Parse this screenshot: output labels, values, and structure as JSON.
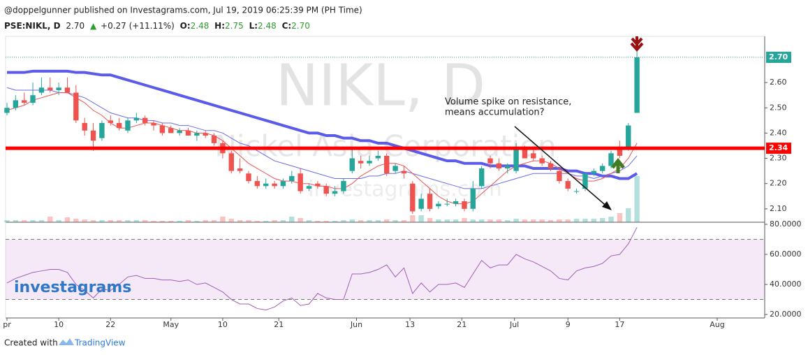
{
  "header": {
    "publisher": "@doppelgunner published on Investagrams.com, Jul 19, 2019 06:25:39 PM (PH Time)",
    "symbol": "PSE:NIKL, D",
    "last": "2.70",
    "change_arrow": "▲",
    "change": "+0.27 (+11.11%)",
    "ohlc": [
      {
        "label": "O:",
        "value": "2.48"
      },
      {
        "label": "H:",
        "value": "2.75"
      },
      {
        "label": "L:",
        "value": "2.48"
      },
      {
        "label": "C:",
        "value": "2.70"
      }
    ]
  },
  "watermark": {
    "ticker": "NIKL, D",
    "company": "Nickel Asia Corporation",
    "site": "investagrams.com",
    "logo": "investagrams"
  },
  "footer": {
    "text": "Created with",
    "brand": "TradingView"
  },
  "chart_data": [
    {
      "type": "candlestick",
      "up_color": "#26a69a",
      "down_color": "#ef5350",
      "xlim": [
        -0.16,
        87.8
      ],
      "ylim": [
        2.047,
        2.783
      ],
      "yticks": [
        {
          "value": 2.1,
          "label": "2.10"
        },
        {
          "value": 2.2,
          "label": "2.20"
        },
        {
          "value": 2.3,
          "label": "2.30"
        },
        {
          "value": 2.4,
          "label": "2.40"
        },
        {
          "value": 2.5,
          "label": "2.50"
        },
        {
          "value": 2.6,
          "label": "2.60"
        }
      ],
      "price_lines": [
        {
          "value": 2.7,
          "label": "2.70",
          "color": "#26a69a"
        },
        {
          "value": 2.34,
          "label": "2.34",
          "color": "#ff0000"
        }
      ],
      "open": [
        2.48,
        2.5,
        2.53,
        2.52,
        2.56,
        2.58,
        2.57,
        2.58,
        2.56,
        2.44,
        2.41,
        2.38,
        2.45,
        2.44,
        2.41,
        2.45,
        2.46,
        2.44,
        2.43,
        2.42,
        2.4,
        2.41,
        2.39,
        2.4,
        2.39,
        2.36,
        2.32,
        2.26,
        2.24,
        2.21,
        2.19,
        2.2,
        2.19,
        2.21,
        2.24,
        2.18,
        2.2,
        2.19,
        2.16,
        2.17,
        2.25,
        2.29,
        2.28,
        2.3,
        2.31,
        2.25,
        2.25,
        2.2,
        2.1,
        2.16,
        2.11,
        2.12,
        2.12,
        2.13,
        2.1,
        2.19,
        2.3,
        2.28,
        2.26,
        2.25,
        2.34,
        2.32,
        2.3,
        2.28,
        2.25,
        2.21,
        2.17,
        2.18,
        2.24,
        2.25,
        2.27,
        2.34,
        2.34,
        2.48
      ],
      "high": [
        2.52,
        2.55,
        2.56,
        2.6,
        2.62,
        2.62,
        2.6,
        2.62,
        2.59,
        2.46,
        2.44,
        2.45,
        2.47,
        2.46,
        2.46,
        2.48,
        2.47,
        2.45,
        2.44,
        2.43,
        2.42,
        2.42,
        2.41,
        2.41,
        2.4,
        2.37,
        2.33,
        2.3,
        2.25,
        2.23,
        2.22,
        2.21,
        2.22,
        2.25,
        2.26,
        2.2,
        2.21,
        2.2,
        2.19,
        2.22,
        2.34,
        2.31,
        2.31,
        2.33,
        2.32,
        2.28,
        2.27,
        2.21,
        2.16,
        2.18,
        2.13,
        2.14,
        2.14,
        2.14,
        2.21,
        2.27,
        2.31,
        2.3,
        2.28,
        2.36,
        2.35,
        2.34,
        2.31,
        2.29,
        2.26,
        2.22,
        2.18,
        2.24,
        2.26,
        2.28,
        2.33,
        2.37,
        2.44,
        2.75
      ],
      "low": [
        2.47,
        2.49,
        2.51,
        2.51,
        2.55,
        2.56,
        2.55,
        2.56,
        2.44,
        2.39,
        2.33,
        2.37,
        2.43,
        2.41,
        2.4,
        2.44,
        2.43,
        2.41,
        2.39,
        2.4,
        2.39,
        2.39,
        2.37,
        2.38,
        2.35,
        2.3,
        2.24,
        2.24,
        2.2,
        2.18,
        2.18,
        2.18,
        2.18,
        2.2,
        2.16,
        2.17,
        2.18,
        2.15,
        2.15,
        2.16,
        2.24,
        2.26,
        2.27,
        2.29,
        2.23,
        2.24,
        2.22,
        2.08,
        2.09,
        2.09,
        2.1,
        2.11,
        2.11,
        2.09,
        2.09,
        2.18,
        2.26,
        2.25,
        2.24,
        2.24,
        2.3,
        2.29,
        2.27,
        2.25,
        2.2,
        2.17,
        2.16,
        2.17,
        2.23,
        2.24,
        2.26,
        2.3,
        2.33,
        2.48
      ],
      "close": [
        2.5,
        2.53,
        2.52,
        2.55,
        2.58,
        2.57,
        2.58,
        2.56,
        2.45,
        2.41,
        2.37,
        2.44,
        2.44,
        2.42,
        2.45,
        2.46,
        2.44,
        2.43,
        2.4,
        2.4,
        2.41,
        2.39,
        2.4,
        2.39,
        2.36,
        2.32,
        2.25,
        2.25,
        2.21,
        2.19,
        2.2,
        2.19,
        2.21,
        2.23,
        2.17,
        2.19,
        2.19,
        2.16,
        2.17,
        2.21,
        2.3,
        2.28,
        2.29,
        2.31,
        2.24,
        2.27,
        2.24,
        2.09,
        2.14,
        2.1,
        2.12,
        2.12,
        2.13,
        2.1,
        2.18,
        2.26,
        2.28,
        2.26,
        2.27,
        2.34,
        2.3,
        2.3,
        2.28,
        2.26,
        2.21,
        2.18,
        2.17,
        2.24,
        2.25,
        2.27,
        2.32,
        2.31,
        2.43,
        2.7
      ],
      "volume": [
        3,
        3,
        3,
        3,
        3,
        8,
        3,
        7,
        5,
        4,
        3,
        3,
        3,
        3,
        3,
        3,
        3,
        2,
        2,
        2,
        2,
        3,
        2,
        3,
        3,
        8,
        5,
        3,
        3,
        2,
        2,
        3,
        3,
        8,
        6,
        3,
        2,
        2,
        2,
        3,
        4,
        3,
        3,
        3,
        4,
        3,
        3,
        10,
        10,
        6,
        4,
        4,
        4,
        6,
        4,
        4,
        4,
        4,
        3,
        5,
        4,
        4,
        4,
        3,
        4,
        4,
        5,
        5,
        5,
        6,
        8,
        13,
        20,
        66
      ],
      "series": [
        {
          "color": "#5b5bea",
          "width": 4,
          "values": [
            2.64,
            2.64,
            2.64,
            2.645,
            2.645,
            2.645,
            2.645,
            2.645,
            2.64,
            2.64,
            2.635,
            2.63,
            2.63,
            2.62,
            2.61,
            2.6,
            2.59,
            2.58,
            2.57,
            2.56,
            2.55,
            2.54,
            2.53,
            2.52,
            2.51,
            2.5,
            2.49,
            2.48,
            2.47,
            2.46,
            2.45,
            2.44,
            2.43,
            2.42,
            2.41,
            2.4,
            2.4,
            2.39,
            2.39,
            2.38,
            2.38,
            2.37,
            2.37,
            2.36,
            2.36,
            2.35,
            2.34,
            2.33,
            2.32,
            2.31,
            2.3,
            2.29,
            2.29,
            2.28,
            2.28,
            2.28,
            2.27,
            2.27,
            2.27,
            2.27,
            2.27,
            2.26,
            2.26,
            2.26,
            2.26,
            2.25,
            2.25,
            2.24,
            2.24,
            2.23,
            2.23,
            2.22,
            2.22,
            2.24
          ]
        },
        {
          "color": "#6b6be8",
          "width": 1,
          "values": [
            2.58,
            2.57,
            2.57,
            2.57,
            2.57,
            2.57,
            2.56,
            2.56,
            2.55,
            2.54,
            2.52,
            2.5,
            2.48,
            2.47,
            2.46,
            2.46,
            2.45,
            2.45,
            2.44,
            2.44,
            2.43,
            2.43,
            2.42,
            2.41,
            2.41,
            2.4,
            2.38,
            2.36,
            2.35,
            2.33,
            2.31,
            2.29,
            2.28,
            2.27,
            2.26,
            2.25,
            2.24,
            2.23,
            2.22,
            2.22,
            2.22,
            2.22,
            2.23,
            2.23,
            2.24,
            2.24,
            2.25,
            2.24,
            2.23,
            2.22,
            2.21,
            2.2,
            2.19,
            2.18,
            2.18,
            2.18,
            2.19,
            2.2,
            2.21,
            2.22,
            2.23,
            2.24,
            2.24,
            2.24,
            2.24,
            2.24,
            2.23,
            2.23,
            2.22,
            2.23,
            2.24,
            2.25,
            2.27,
            2.31
          ]
        },
        {
          "color": "#f05050",
          "width": 1,
          "values": [
            2.49,
            2.5,
            2.51,
            2.53,
            2.54,
            2.55,
            2.56,
            2.56,
            2.54,
            2.52,
            2.49,
            2.47,
            2.44,
            2.42,
            2.42,
            2.43,
            2.44,
            2.44,
            2.43,
            2.42,
            2.41,
            2.41,
            2.4,
            2.4,
            2.39,
            2.37,
            2.34,
            2.31,
            2.28,
            2.26,
            2.24,
            2.22,
            2.21,
            2.21,
            2.2,
            2.2,
            2.19,
            2.19,
            2.18,
            2.18,
            2.2,
            2.23,
            2.25,
            2.27,
            2.28,
            2.28,
            2.27,
            2.24,
            2.21,
            2.18,
            2.15,
            2.13,
            2.12,
            2.12,
            2.13,
            2.16,
            2.19,
            2.22,
            2.25,
            2.27,
            2.28,
            2.29,
            2.29,
            2.28,
            2.26,
            2.24,
            2.22,
            2.21,
            2.21,
            2.22,
            2.24,
            2.26,
            2.3,
            2.36
          ]
        }
      ],
      "annotations": [
        "Volume spike on resistance,",
        "means accumulation?"
      ]
    },
    {
      "type": "line",
      "color": "#a05cb8",
      "xlim": [
        -0.16,
        87.8
      ],
      "ylim": [
        17.7,
        81.4
      ],
      "bands": {
        "lower": 30,
        "upper": 70
      },
      "yticks": [
        {
          "value": 20,
          "label": "20.0000"
        },
        {
          "value": 40,
          "label": "40.0000"
        },
        {
          "value": 60,
          "label": "60.0000"
        },
        {
          "value": 80,
          "label": "80.0000"
        }
      ],
      "xticks": [
        {
          "value": 0,
          "label": "pr"
        },
        {
          "value": 6,
          "label": "10"
        },
        {
          "value": 12,
          "label": "22"
        },
        {
          "value": 19,
          "label": "May"
        },
        {
          "value": 25,
          "label": "10"
        },
        {
          "value": 31.5,
          "label": "21"
        },
        {
          "value": 40.5,
          "label": "Jun"
        },
        {
          "value": 46.7,
          "label": "13"
        },
        {
          "value": 52.7,
          "label": "21"
        },
        {
          "value": 58.8,
          "label": "Jul"
        },
        {
          "value": 65,
          "label": "9"
        },
        {
          "value": 71,
          "label": "17"
        },
        {
          "value": 82.3,
          "label": "Aug"
        }
      ],
      "values": [
        41,
        44,
        46,
        48,
        49,
        50,
        50,
        48,
        40,
        36,
        31,
        37,
        36,
        40,
        45,
        46,
        44,
        44,
        43,
        43,
        42,
        43,
        40,
        41,
        38,
        35,
        30,
        27,
        27,
        24,
        23,
        25,
        29,
        31,
        26,
        27,
        34,
        31,
        30,
        30,
        47,
        47,
        48,
        50,
        53,
        45,
        51,
        34,
        41,
        35,
        40,
        40,
        41,
        38,
        47,
        56,
        51,
        53,
        53,
        60,
        57,
        55,
        52,
        49,
        44,
        43,
        49,
        51,
        52,
        54,
        59,
        60,
        67,
        78
      ]
    }
  ]
}
